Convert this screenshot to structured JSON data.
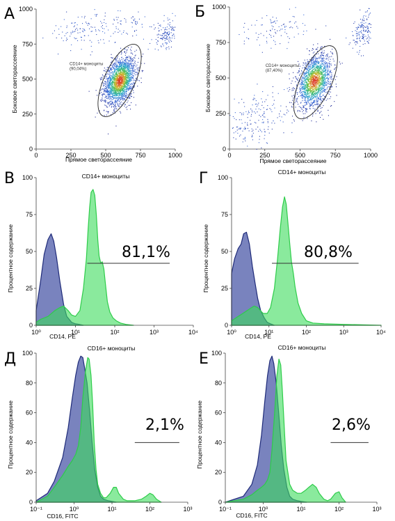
{
  "chart_data": [
    {
      "id": "A",
      "type": "scatter",
      "panel_label": "А",
      "xlabel": "Прямое светорассеяние",
      "ylabel": "Боковое светорассеяние",
      "xlim": [
        0,
        1000
      ],
      "ylim": [
        0,
        1000
      ],
      "x_ticks": [
        "0",
        "250",
        "500",
        "750",
        "1000"
      ],
      "y_ticks": [
        "0",
        "250",
        "500",
        "750",
        "1000"
      ],
      "gate": {
        "label": "CD14+ моноциты",
        "percent": "(90,04%)",
        "center": [
          600,
          490
        ],
        "rx": 200,
        "ry": 330,
        "angle_deg": -25
      },
      "populations": [
        {
          "cx": 600,
          "cy": 490,
          "sx": 55,
          "sy": 80,
          "n": 2200
        },
        {
          "cx": 930,
          "cy": 820,
          "sx": 50,
          "sy": 50,
          "n": 150
        },
        {
          "cx": 350,
          "cy": 850,
          "sx": 120,
          "sy": 60,
          "n": 120
        },
        {
          "cx": 650,
          "cy": 880,
          "sx": 120,
          "sy": 50,
          "n": 60
        }
      ]
    },
    {
      "id": "B",
      "type": "scatter",
      "panel_label": "Б",
      "xlabel": "Прямое светорассеяние",
      "ylabel": "Боковое светорассеяние",
      "xlim": [
        0,
        1000
      ],
      "ylim": [
        0,
        1000
      ],
      "x_ticks": [
        "0",
        "250",
        "500",
        "750",
        "1000"
      ],
      "y_ticks": [
        "0",
        "250",
        "500",
        "750",
        "1000"
      ],
      "gate": {
        "label": "CD14+ моноциты",
        "percent": "(87,40%)",
        "center": [
          610,
          470
        ],
        "rx": 200,
        "ry": 330,
        "angle_deg": -25
      },
      "populations": [
        {
          "cx": 600,
          "cy": 480,
          "sx": 60,
          "sy": 85,
          "n": 1900
        },
        {
          "cx": 950,
          "cy": 830,
          "sx": 45,
          "sy": 60,
          "n": 180
        },
        {
          "cx": 180,
          "cy": 200,
          "sx": 120,
          "sy": 110,
          "n": 200
        },
        {
          "cx": 350,
          "cy": 850,
          "sx": 130,
          "sy": 60,
          "n": 100
        }
      ]
    },
    {
      "id": "V",
      "type": "area",
      "panel_label": "В",
      "title": "CD14+ моноциты",
      "xlabel": "CD14, PE",
      "ylabel": "Процентное содержание",
      "x_scale": "log",
      "xlim": [
        1,
        10000
      ],
      "ylim": [
        0,
        100
      ],
      "x_ticks": [
        1,
        10,
        100,
        1000,
        10000
      ],
      "y_ticks": [
        "0",
        "25",
        "50",
        "75",
        "100"
      ],
      "percent": "81,1%",
      "marker_range": [
        20,
        2500
      ],
      "marker_y": 42,
      "series": [
        {
          "color": "#4c5aa8",
          "x": [
            1,
            1.3,
            1.6,
            2,
            2.4,
            2.8,
            3.3,
            4,
            5,
            6,
            8,
            10,
            13,
            16
          ],
          "y": [
            10,
            30,
            48,
            58,
            62,
            57,
            46,
            30,
            14,
            6,
            2,
            1,
            0.5,
            0
          ]
        },
        {
          "color": "#3cdc5c",
          "x": [
            1,
            1.3,
            2,
            3,
            4,
            5,
            6.5,
            8,
            10,
            13,
            16,
            19,
            21,
            23,
            25,
            28,
            31,
            34,
            37,
            40,
            44,
            48,
            53,
            58,
            65,
            75,
            90,
            110,
            140,
            200,
            300
          ],
          "y": [
            2,
            4,
            6,
            10,
            12,
            13,
            10,
            7,
            6,
            10,
            25,
            45,
            65,
            80,
            90,
            92,
            88,
            75,
            58,
            47,
            42,
            43,
            38,
            28,
            16,
            9,
            5,
            3,
            1.5,
            0.5,
            0
          ]
        }
      ]
    },
    {
      "id": "G",
      "type": "area",
      "panel_label": "Г",
      "title": "CD14+ моноциты",
      "xlabel": "CD14, PE",
      "ylabel": "Процентное содержание",
      "x_scale": "log",
      "xlim": [
        1,
        10000
      ],
      "ylim": [
        0,
        100
      ],
      "x_ticks": [
        1,
        10,
        100,
        1000,
        10000
      ],
      "y_ticks": [
        "0",
        "25",
        "50",
        "75",
        "100"
      ],
      "percent": "80,8%",
      "marker_range": [
        12,
        2500
      ],
      "marker_y": 42,
      "series": [
        {
          "color": "#4c5aa8",
          "x": [
            1,
            1.2,
            1.5,
            1.8,
            2.1,
            2.5,
            3,
            3.6,
            4.3,
            5,
            6,
            7.5,
            9,
            11,
            14
          ],
          "y": [
            35,
            45,
            52,
            55,
            62,
            63,
            55,
            40,
            28,
            18,
            10,
            5,
            2,
            1,
            0
          ]
        },
        {
          "color": "#3cdc5c",
          "x": [
            1,
            1.5,
            2,
            3,
            4,
            5,
            7,
            9,
            11,
            14,
            17,
            20,
            23,
            26,
            29,
            32,
            36,
            40,
            45,
            50,
            60,
            75,
            100,
            150,
            300,
            1000,
            10000
          ],
          "y": [
            3,
            6,
            8,
            11,
            13,
            12,
            8,
            8,
            12,
            25,
            45,
            65,
            80,
            87,
            82,
            70,
            55,
            43,
            35,
            26,
            15,
            8,
            3,
            1.5,
            1,
            0.6,
            0
          ]
        }
      ]
    },
    {
      "id": "D",
      "type": "area",
      "panel_label": "Д",
      "title": "CD16+ моноциты",
      "xlabel": "CD16, FITC",
      "ylabel": "Процентное содержание",
      "x_scale": "log",
      "xlim": [
        0.1,
        1000
      ],
      "ylim": [
        0,
        100
      ],
      "x_ticks": [
        0.1,
        1,
        10,
        100,
        1000
      ],
      "y_ticks": [
        "0",
        "20",
        "40",
        "60",
        "80",
        "100"
      ],
      "percent": "2,1%",
      "marker_range": [
        40,
        600
      ],
      "marker_y": 40,
      "series": [
        {
          "color": "#4c5aa8",
          "x": [
            0.1,
            0.2,
            0.3,
            0.5,
            0.7,
            0.9,
            1.1,
            1.3,
            1.5,
            1.7,
            1.9,
            2.2,
            2.6,
            3.0,
            3.5,
            4.2,
            5,
            6,
            8,
            10,
            13
          ],
          "y": [
            1,
            6,
            14,
            30,
            50,
            70,
            85,
            94,
            98,
            97,
            90,
            80,
            60,
            40,
            22,
            10,
            4,
            2,
            1,
            0.5,
            0
          ]
        },
        {
          "color": "#3cdc5c",
          "x": [
            0.1,
            0.2,
            0.3,
            0.5,
            0.7,
            0.9,
            1.1,
            1.3,
            1.5,
            1.7,
            2.0,
            2.3,
            2.5,
            2.8,
            3.1,
            3.4,
            3.8,
            4.2,
            5,
            6,
            7,
            9,
            11,
            13,
            15,
            20,
            25,
            40,
            60,
            80,
            100,
            120,
            150,
            200
          ],
          "y": [
            0,
            4,
            10,
            18,
            24,
            28,
            32,
            38,
            50,
            70,
            88,
            97,
            96,
            85,
            65,
            40,
            22,
            12,
            6,
            3,
            3,
            6,
            10,
            10,
            6,
            2,
            1,
            1,
            2,
            4,
            6,
            5,
            2,
            0
          ]
        }
      ]
    },
    {
      "id": "E",
      "type": "area",
      "panel_label": "Е",
      "title": "CD16+ моноциты",
      "xlabel": "CD16, FITC",
      "ylabel": "Процентное содержание",
      "x_scale": "log",
      "xlim": [
        0.1,
        1000
      ],
      "ylim": [
        0,
        100
      ],
      "x_ticks": [
        0.1,
        1,
        10,
        100,
        1000
      ],
      "y_ticks": [
        "0",
        "20",
        "40",
        "60",
        "80",
        "100"
      ],
      "percent": "2,6%",
      "marker_range": [
        60,
        600
      ],
      "marker_y": 40,
      "series": [
        {
          "color": "#4c5aa8",
          "x": [
            0.1,
            0.3,
            0.5,
            0.7,
            0.9,
            1.1,
            1.3,
            1.5,
            1.7,
            1.9,
            2.2,
            2.6,
            3.0,
            3.5,
            4.2,
            5,
            6,
            8,
            10,
            14
          ],
          "y": [
            0,
            4,
            12,
            25,
            45,
            68,
            85,
            95,
            98,
            93,
            80,
            58,
            38,
            22,
            10,
            4,
            2,
            1,
            0.5,
            0
          ]
        },
        {
          "color": "#3cdc5c",
          "x": [
            0.1,
            0.3,
            0.5,
            0.7,
            0.9,
            1.1,
            1.3,
            1.5,
            1.7,
            2.0,
            2.3,
            2.6,
            2.9,
            3.2,
            3.6,
            4.0,
            5,
            6,
            8,
            10,
            13,
            16,
            20,
            25,
            30,
            40,
            50,
            60,
            80,
            100,
            120,
            150
          ],
          "y": [
            0,
            2,
            5,
            8,
            10,
            12,
            15,
            20,
            35,
            60,
            85,
            96,
            92,
            75,
            50,
            28,
            12,
            8,
            6,
            6,
            8,
            10,
            12,
            10,
            6,
            2,
            1,
            2,
            6,
            7,
            3,
            0
          ]
        }
      ]
    }
  ]
}
